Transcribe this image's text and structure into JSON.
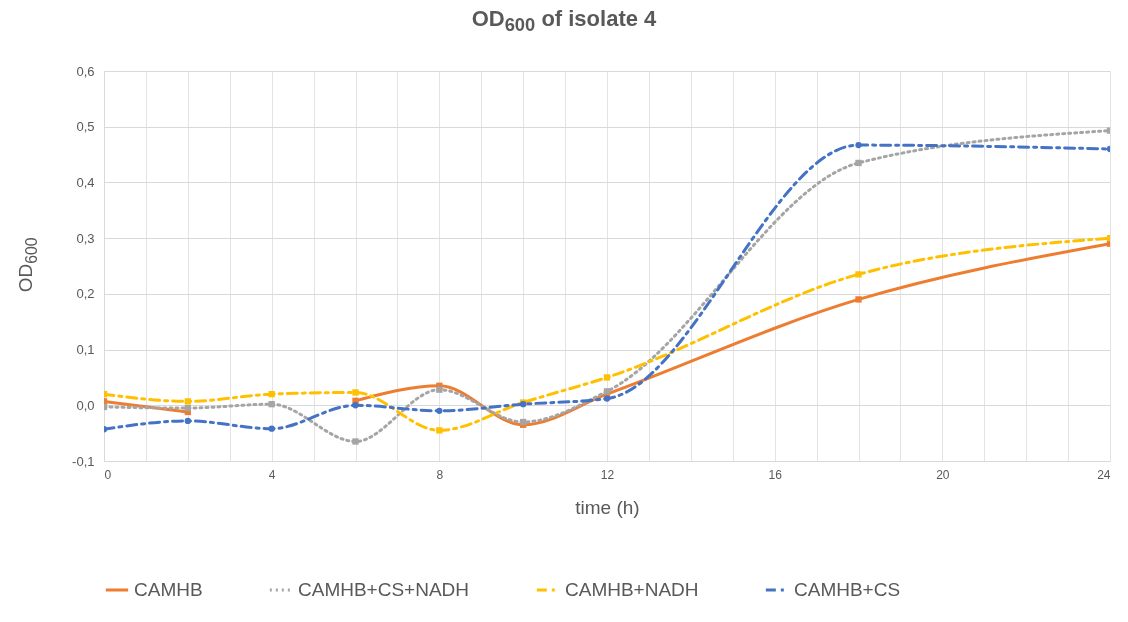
{
  "chart_data": {
    "type": "line",
    "title": "OD$_{600}$ of isolate 4",
    "xlabel": "time (h)",
    "ylabel": "OD$_{600}$",
    "x": [
      0,
      2,
      4,
      6,
      8,
      10,
      12,
      18,
      24
    ],
    "series": [
      {
        "name": "CAMHB",
        "color": "#ed7d31",
        "marker": "square",
        "line_style": "solid",
        "values": [
          0.007,
          -0.012,
          null,
          0.008,
          0.035,
          -0.035,
          0.02,
          0.19,
          0.29
        ]
      },
      {
        "name": "CAMHB+CS+NADH",
        "color": "#a5a5a5",
        "marker": "square",
        "line_style": "dotted",
        "values": [
          -0.003,
          -0.005,
          0.002,
          -0.065,
          0.028,
          -0.03,
          0.025,
          0.435,
          0.493
        ]
      },
      {
        "name": "CAMHB+NADH",
        "color": "#ffc000",
        "marker": "square",
        "line_style": "dashed",
        "values": [
          0.02,
          0.007,
          0.02,
          0.023,
          -0.045,
          0.005,
          0.05,
          0.235,
          0.3
        ]
      },
      {
        "name": "CAMHB+CS",
        "color": "#4472c4",
        "marker": "circle",
        "line_style": "dashed",
        "values": [
          -0.043,
          -0.028,
          -0.042,
          0.0,
          -0.01,
          0.002,
          0.012,
          0.467,
          0.46
        ]
      }
    ],
    "xlim": [
      0,
      24
    ],
    "xticks": [
      0,
      {
        "value": 1,
        "label": null
      },
      {
        "value": 2,
        "label": null
      },
      {
        "value": 3,
        "label": null
      },
      4,
      {
        "value": 5,
        "label": null
      },
      {
        "value": 6,
        "label": null
      },
      {
        "value": 7,
        "label": null
      },
      8,
      {
        "value": 9,
        "label": null
      },
      {
        "value": 10,
        "label": null
      },
      {
        "value": 11,
        "label": null
      },
      12,
      {
        "value": 13,
        "label": null
      },
      {
        "value": 14,
        "label": null
      },
      {
        "value": 15,
        "label": null
      },
      16,
      {
        "value": 17,
        "label": null
      },
      {
        "value": 18,
        "label": null
      },
      {
        "value": 19,
        "label": null
      },
      20,
      {
        "value": 21,
        "label": null
      },
      {
        "value": 22,
        "label": null
      },
      {
        "value": 23,
        "label": null
      },
      24
    ],
    "ylim": [
      -0.1,
      0.6
    ],
    "yticks": [
      {
        "value": -0.1,
        "label": "-0,1"
      },
      {
        "value": 0,
        "label": "0,0"
      },
      {
        "value": 0.1,
        "label": "0,1"
      },
      {
        "value": 0.2,
        "label": "0,2"
      },
      {
        "value": 0.3,
        "label": "0,3"
      },
      {
        "value": 0.4,
        "label": "0,4"
      },
      {
        "value": 0.5,
        "label": "0,5"
      },
      {
        "value": 0.6,
        "label": "0,6"
      }
    ],
    "grid": true,
    "legend": "bottom"
  }
}
